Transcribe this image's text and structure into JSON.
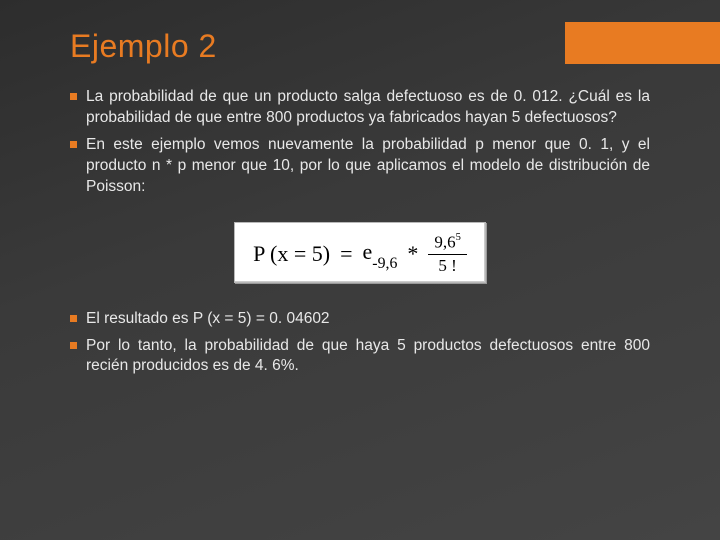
{
  "colors": {
    "accent": "#e87b22",
    "title": "#e87b22",
    "body_text": "#e8e8e8",
    "background_dark": "#3a3a3a",
    "formula_bg": "#ffffff",
    "formula_border": "#b8b8b8"
  },
  "typography": {
    "title_fontsize": 32,
    "body_fontsize": 15.5,
    "formula_fontsize": 22,
    "title_family": "Arial",
    "formula_family": "Times New Roman"
  },
  "title": "Ejemplo 2",
  "bullets_top": [
    "La probabilidad de que un producto salga defectuoso es de 0. 012. ¿Cuál es la probabilidad de que entre 800 productos ya fabricados hayan 5 defectuosos?",
    "En este ejemplo vemos nuevamente la probabilidad p menor que 0. 1, y el producto  n * p  menor que 10, por lo que aplicamos el modelo de distribución de Poisson:"
  ],
  "formula": {
    "lhs": "P (x = 5)",
    "eq": "=",
    "e": "e",
    "exp_e": "-9,6",
    "mult": "*",
    "num_base": "9,6",
    "num_exp": "5",
    "den": "5 !"
  },
  "bullets_bottom": [
    "El resultado es P (x = 5) = 0. 04602",
    "Por lo tanto, la probabilidad de que haya 5 productos defectuosos entre 800 recién producidos es de 4. 6%."
  ]
}
